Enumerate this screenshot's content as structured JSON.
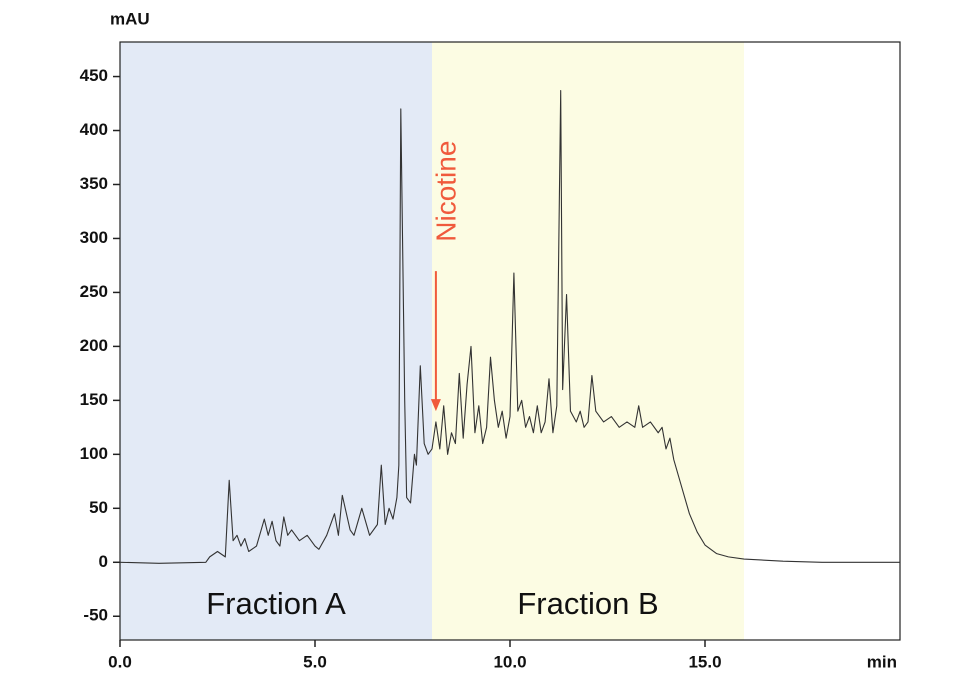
{
  "chart_data": {
    "type": "line",
    "y_label": "mAU",
    "x_label": "min",
    "xlim": [
      0,
      20
    ],
    "ylim": [
      -72,
      482
    ],
    "xticks": [
      {
        "value": 0,
        "label": "0.0"
      },
      {
        "value": 5,
        "label": "5.0"
      },
      {
        "value": 10,
        "label": "10.0"
      },
      {
        "value": 15,
        "label": "15.0"
      }
    ],
    "yticks": [
      -50,
      0,
      50,
      100,
      150,
      200,
      250,
      300,
      350,
      400,
      450
    ],
    "color": "#333333",
    "regions": [
      {
        "label": "Fraction A",
        "start": 0,
        "end": 8,
        "color": "#e3eaf6"
      },
      {
        "label": "Fraction B",
        "start": 8,
        "end": 16,
        "color": "#fcfce3"
      }
    ],
    "annotations": [
      {
        "text": "Nicotine",
        "x": 8.1,
        "y": 140,
        "color": "#f05a3c"
      }
    ],
    "x": [
      0,
      1,
      2.2,
      2.3,
      2.5,
      2.7,
      2.8,
      2.9,
      3.0,
      3.1,
      3.2,
      3.3,
      3.5,
      3.7,
      3.8,
      3.9,
      4.0,
      4.1,
      4.2,
      4.3,
      4.4,
      4.6,
      4.8,
      5.0,
      5.1,
      5.3,
      5.5,
      5.6,
      5.7,
      5.9,
      6.0,
      6.2,
      6.4,
      6.6,
      6.7,
      6.8,
      6.9,
      7.0,
      7.1,
      7.15,
      7.2,
      7.3,
      7.35,
      7.45,
      7.55,
      7.6,
      7.7,
      7.8,
      7.9,
      8.0,
      8.1,
      8.2,
      8.3,
      8.4,
      8.5,
      8.6,
      8.7,
      8.8,
      8.9,
      9.0,
      9.1,
      9.2,
      9.3,
      9.4,
      9.5,
      9.6,
      9.7,
      9.8,
      9.9,
      10.0,
      10.1,
      10.2,
      10.3,
      10.4,
      10.5,
      10.6,
      10.7,
      10.8,
      10.9,
      11.0,
      11.1,
      11.2,
      11.3,
      11.35,
      11.45,
      11.55,
      11.7,
      11.8,
      11.9,
      12.0,
      12.1,
      12.2,
      12.4,
      12.6,
      12.8,
      13.0,
      13.2,
      13.3,
      13.4,
      13.6,
      13.8,
      13.9,
      14.0,
      14.1,
      14.2,
      14.4,
      14.6,
      14.8,
      15.0,
      15.3,
      15.6,
      16.0,
      17.0,
      18.0,
      20.0
    ],
    "values": [
      0,
      -1,
      0,
      5,
      10,
      5,
      76,
      20,
      25,
      15,
      22,
      10,
      15,
      40,
      25,
      38,
      20,
      15,
      42,
      25,
      30,
      20,
      25,
      15,
      12,
      25,
      45,
      25,
      62,
      30,
      25,
      50,
      25,
      35,
      90,
      35,
      50,
      40,
      60,
      90,
      420,
      150,
      60,
      55,
      100,
      90,
      182,
      110,
      100,
      105,
      130,
      105,
      145,
      100,
      120,
      110,
      175,
      115,
      165,
      200,
      120,
      145,
      110,
      125,
      190,
      150,
      125,
      140,
      115,
      135,
      268,
      140,
      150,
      125,
      135,
      120,
      145,
      120,
      130,
      170,
      120,
      145,
      437,
      160,
      248,
      140,
      130,
      140,
      125,
      130,
      173,
      140,
      130,
      135,
      125,
      130,
      125,
      145,
      125,
      130,
      120,
      125,
      105,
      115,
      95,
      70,
      45,
      28,
      16,
      8,
      5,
      3,
      1,
      0,
      0
    ]
  }
}
